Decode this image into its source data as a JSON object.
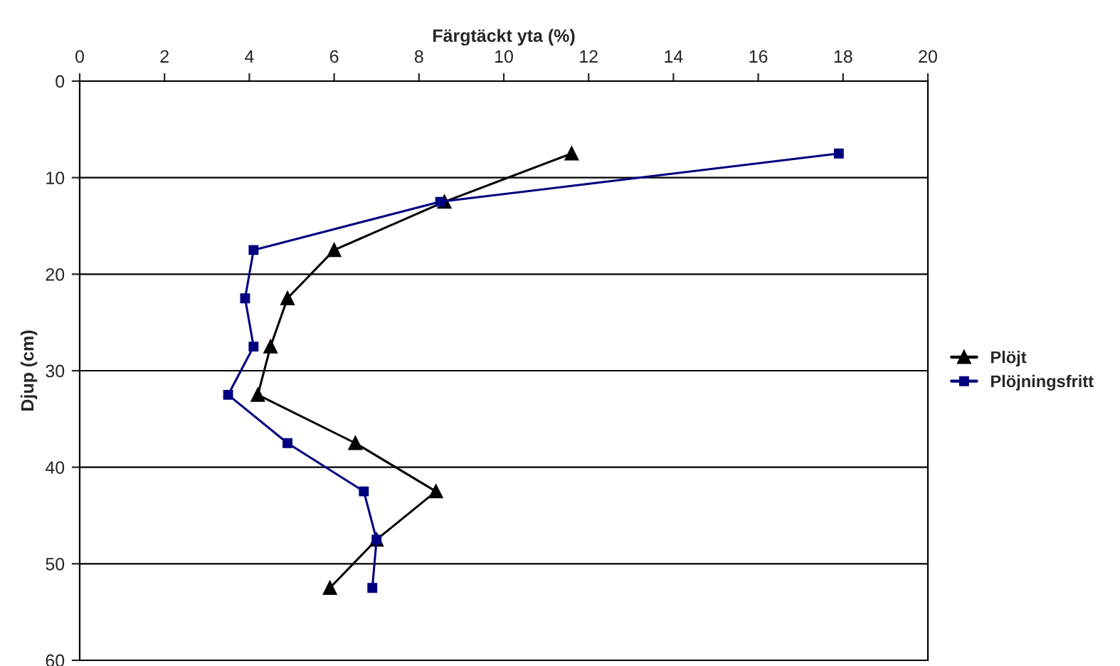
{
  "chart_data": {
    "type": "line",
    "xlabel": "Färgtäckt yta (%)",
    "ylabel": "Djup (cm)",
    "xlim": [
      0,
      20
    ],
    "xticks": [
      0,
      2,
      4,
      6,
      8,
      10,
      12,
      14,
      16,
      18,
      20
    ],
    "ylim": [
      60,
      0
    ],
    "yticks": [
      0,
      10,
      20,
      30,
      40,
      50,
      60
    ],
    "grid": "y",
    "legend": "right",
    "line_style": "solid",
    "series": [
      {
        "name": "Plöjt",
        "color": "#000000",
        "marker": "triangle",
        "x": [
          11.6,
          8.6,
          6.0,
          4.9,
          4.5,
          4.2,
          6.5,
          8.4,
          7.0,
          5.9
        ],
        "values": [
          7.5,
          12.5,
          17.5,
          22.5,
          27.5,
          32.5,
          37.5,
          42.5,
          47.5,
          52.5
        ]
      },
      {
        "name": "Plöjningsfritt",
        "color": "#000080",
        "marker": "square",
        "x": [
          17.9,
          8.5,
          4.1,
          3.9,
          4.1,
          3.5,
          4.9,
          6.7,
          7.0,
          6.9
        ],
        "values": [
          7.5,
          12.5,
          17.5,
          22.5,
          27.5,
          32.5,
          37.5,
          42.5,
          47.5,
          52.5
        ]
      }
    ]
  }
}
